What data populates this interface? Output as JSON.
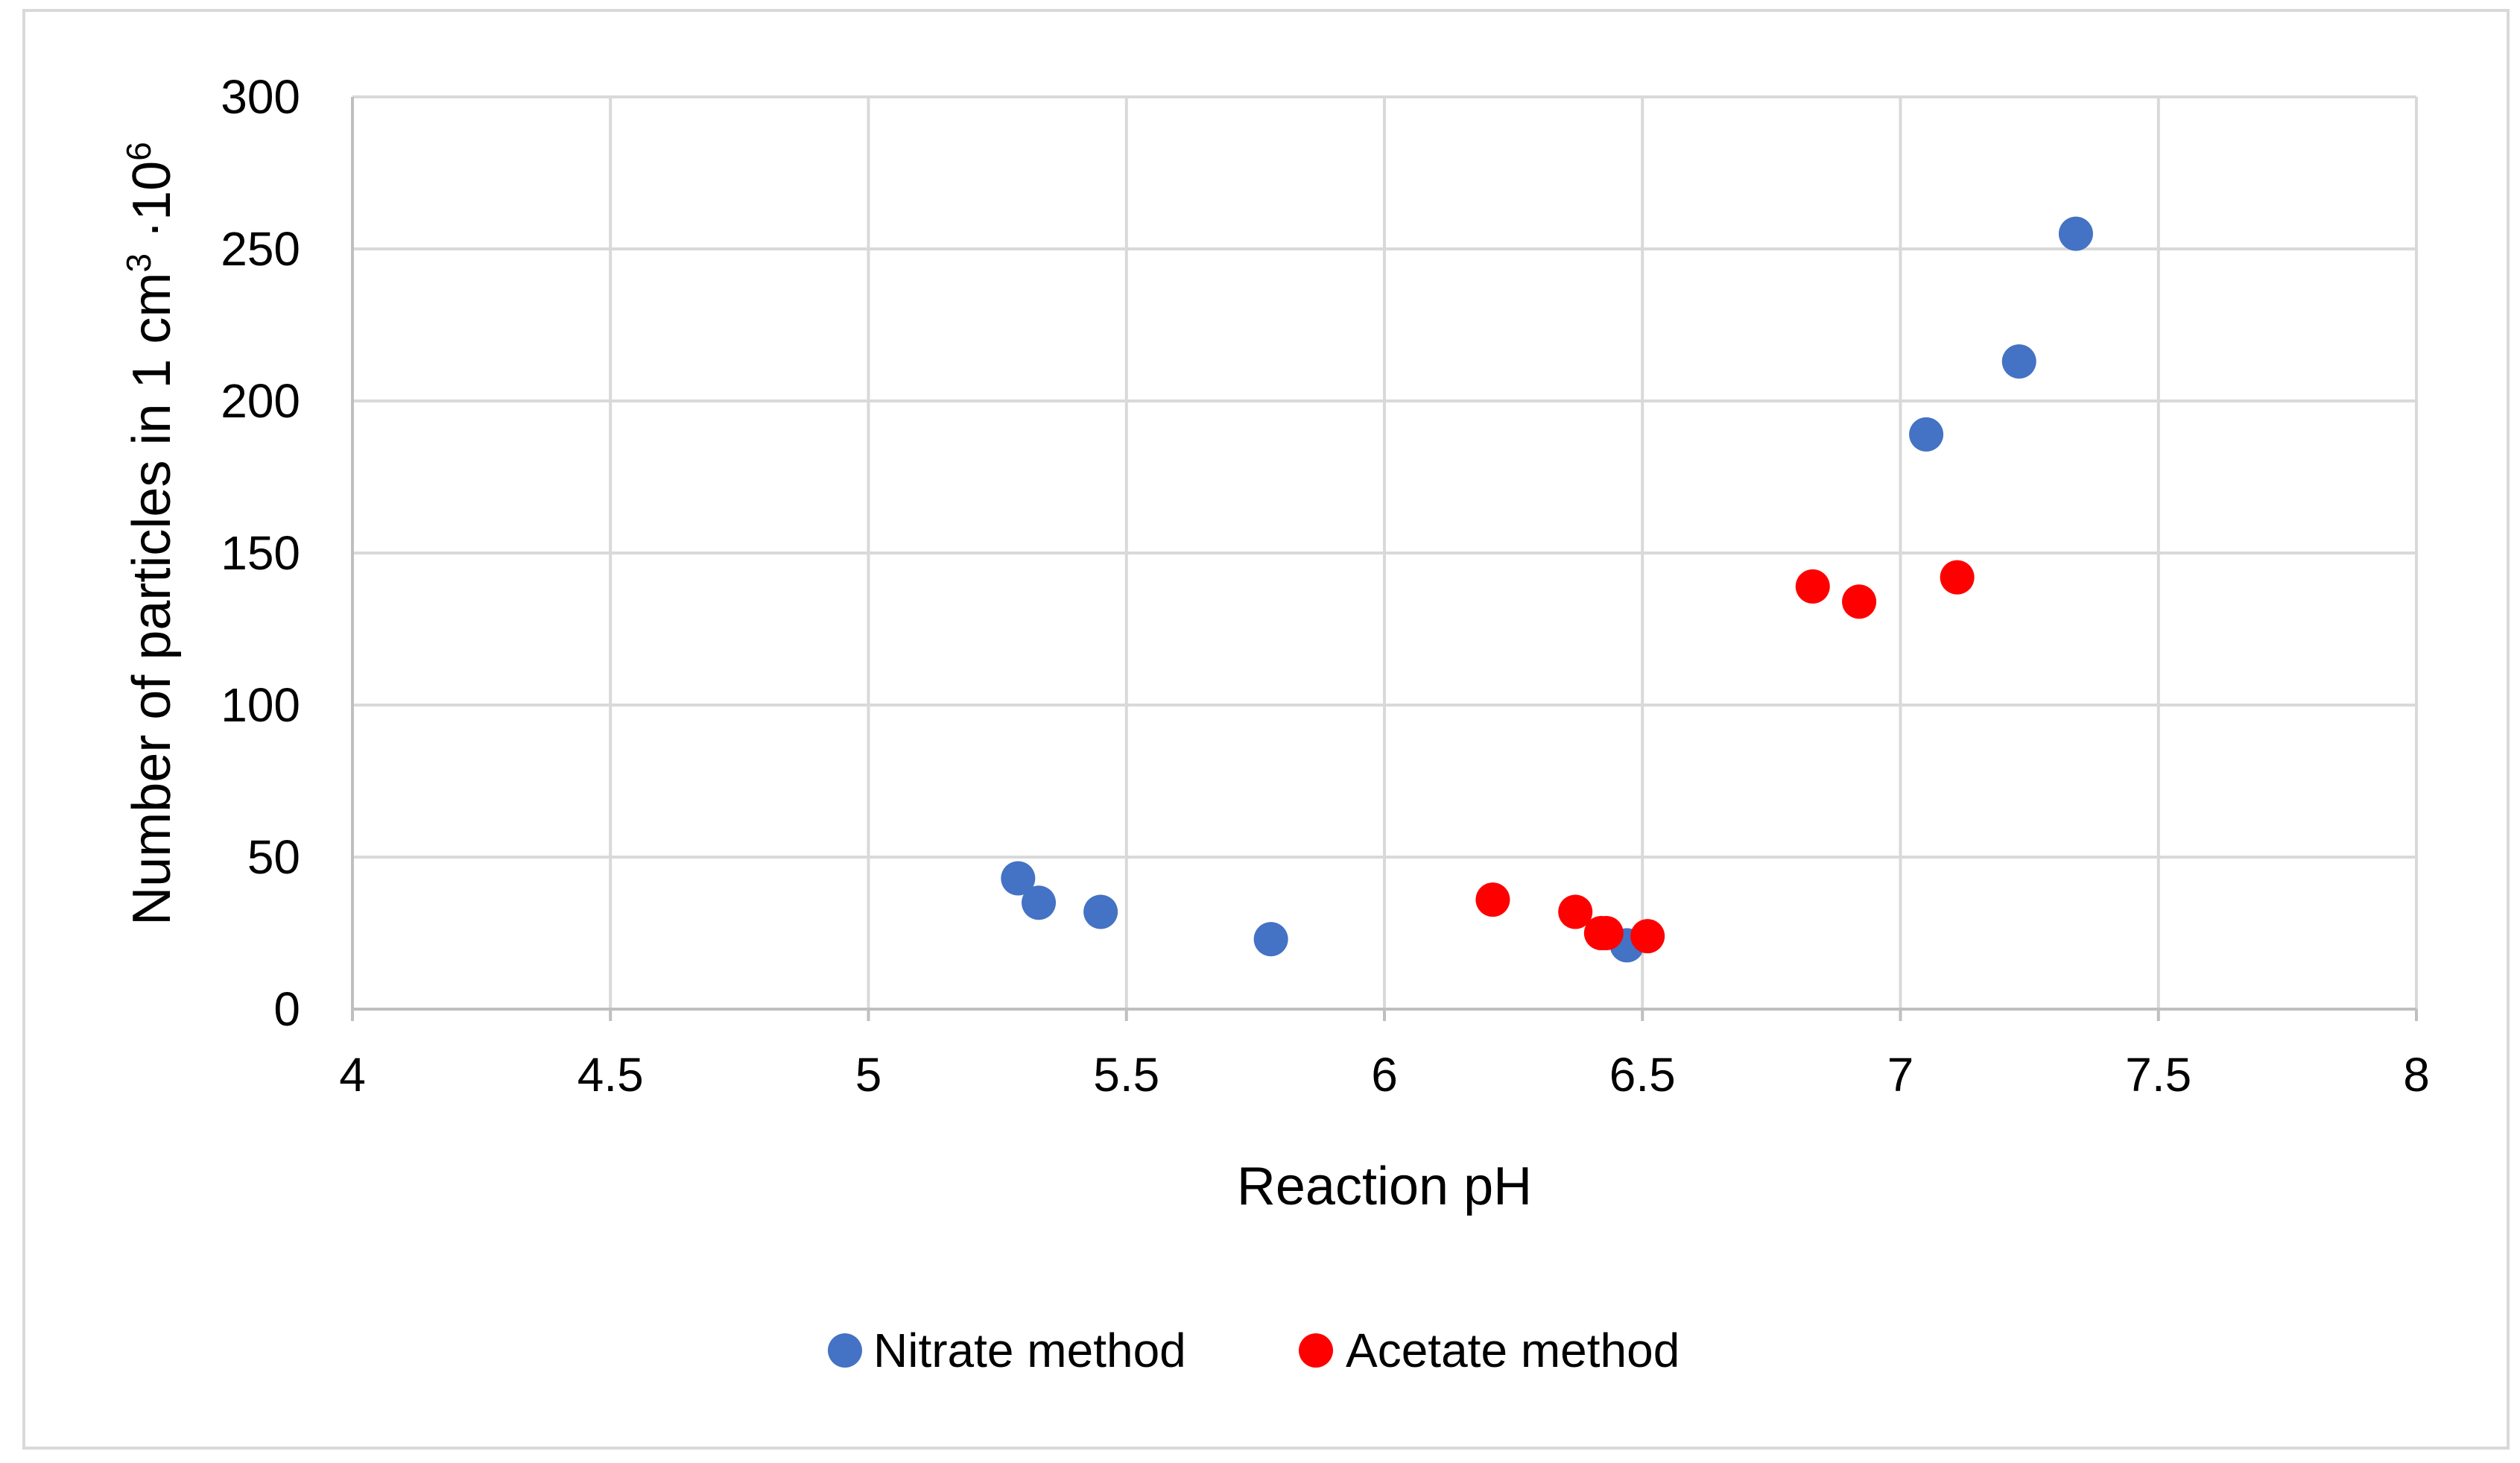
{
  "chart_data": {
    "type": "scatter",
    "title": "",
    "xlabel": "Reaction pH",
    "ylabel": {
      "main": "Number of particles in 1 cm",
      "superscript_1": "3",
      "middle": " ·10",
      "superscript_2": "6"
    },
    "xlim": [
      4,
      8
    ],
    "ylim": [
      0,
      300
    ],
    "x_ticks": [
      4,
      4.5,
      5,
      5.5,
      6,
      6.5,
      7,
      7.5,
      8
    ],
    "x_tick_labels": [
      "4",
      "4.5",
      "5",
      "5.5",
      "6",
      "6.5",
      "7",
      "7.5",
      "8"
    ],
    "y_ticks": [
      0,
      50,
      100,
      150,
      200,
      250,
      300
    ],
    "y_tick_labels": [
      "0",
      "50",
      "100",
      "150",
      "200",
      "250",
      "300"
    ],
    "grid": true,
    "legend_position": "bottom",
    "series": [
      {
        "name": "Nitrate method",
        "color": "#4472C4",
        "points": [
          {
            "x": 5.29,
            "y": 43
          },
          {
            "x": 5.33,
            "y": 35
          },
          {
            "x": 5.45,
            "y": 32
          },
          {
            "x": 5.78,
            "y": 23
          },
          {
            "x": 6.47,
            "y": 21
          },
          {
            "x": 7.05,
            "y": 189
          },
          {
            "x": 7.23,
            "y": 213
          },
          {
            "x": 7.34,
            "y": 255
          }
        ]
      },
      {
        "name": "Acetate method",
        "color": "#FF0000",
        "points": [
          {
            "x": 6.21,
            "y": 36
          },
          {
            "x": 6.37,
            "y": 32
          },
          {
            "x": 6.42,
            "y": 25
          },
          {
            "x": 6.43,
            "y": 25
          },
          {
            "x": 6.51,
            "y": 24
          },
          {
            "x": 6.83,
            "y": 139
          },
          {
            "x": 6.92,
            "y": 134
          },
          {
            "x": 7.11,
            "y": 142
          }
        ]
      }
    ]
  }
}
